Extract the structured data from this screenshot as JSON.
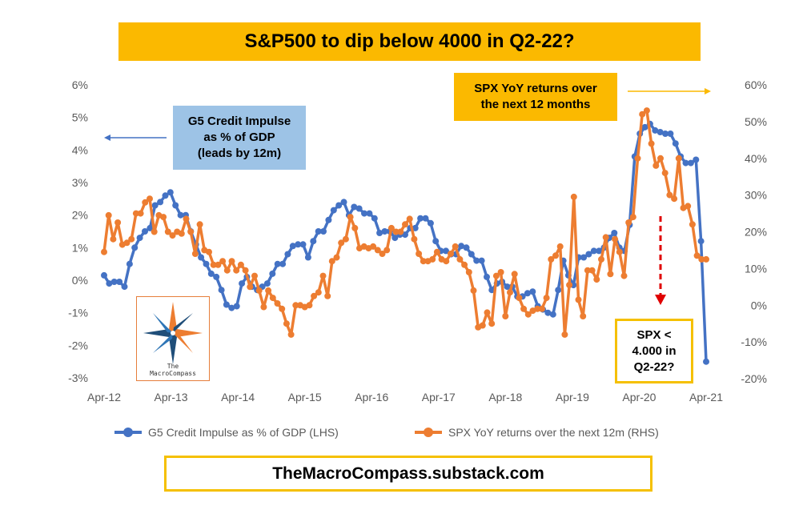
{
  "title": "S&P500 to dip below 4000 in Q2-22?",
  "footer": "TheMacroCompass.substack.com",
  "annotations": {
    "left_lines": [
      "G5 Credit Impulse",
      "as % of GDP",
      "(leads by 12m)"
    ],
    "right_lines": [
      "SPX YoY returns over",
      "the next 12 months"
    ],
    "box_lines": [
      "SPX <",
      "4.000 in",
      "Q2-22?"
    ]
  },
  "logo": {
    "line1": "The",
    "line2": "MacroCompass"
  },
  "colors": {
    "credit": "#4472c4",
    "spx": "#ed7d31",
    "title_bg": "#fbb900",
    "box_left": "#9dc3e6",
    "arrow_red": "#e00000"
  },
  "chart_data": {
    "type": "line",
    "title": "S&P500 to dip below 4000 in Q2-22?",
    "x_ticks": [
      "Apr-12",
      "Apr-13",
      "Apr-14",
      "Apr-15",
      "Apr-16",
      "Apr-17",
      "Apr-18",
      "Apr-19",
      "Apr-20",
      "Apr-21"
    ],
    "y_left": {
      "ticks": [
        "6%",
        "5%",
        "4%",
        "3%",
        "2%",
        "1%",
        "0%",
        "-1%",
        "-2%",
        "-3%"
      ],
      "min": -3,
      "max": 6
    },
    "y_right": {
      "ticks": [
        "60%",
        "50%",
        "40%",
        "30%",
        "20%",
        "10%",
        "0%",
        "-10%",
        "-20%"
      ],
      "min": -20,
      "max": 60
    },
    "series": [
      {
        "name": "G5 Credit Impulse as % of GDP (LHS)",
        "axis": "left",
        "color": "#4472c4",
        "start_month_index": 0,
        "values": [
          0.15,
          -0.1,
          -0.05,
          -0.05,
          -0.2,
          0.5,
          1.0,
          1.3,
          1.5,
          1.6,
          2.3,
          2.4,
          2.6,
          2.7,
          2.3,
          2.0,
          2.0,
          1.5,
          1.1,
          0.7,
          0.5,
          0.2,
          0.1,
          -0.3,
          -0.75,
          -0.85,
          -0.8,
          -0.1,
          0.1,
          -0.2,
          -0.3,
          -0.2,
          -0.1,
          0.2,
          0.5,
          0.5,
          0.8,
          1.05,
          1.1,
          1.1,
          0.7,
          1.2,
          1.5,
          1.5,
          1.85,
          2.15,
          2.3,
          2.4,
          2.0,
          2.25,
          2.2,
          2.05,
          2.05,
          1.9,
          1.45,
          1.5,
          1.5,
          1.3,
          1.4,
          1.4,
          1.6,
          1.6,
          1.9,
          1.9,
          1.75,
          1.2,
          0.9,
          0.9,
          0.8,
          0.8,
          1.05,
          1.0,
          0.8,
          0.6,
          0.6,
          0.1,
          -0.3,
          -0.1,
          -0.05,
          -0.2,
          -0.2,
          -0.5,
          -0.5,
          -0.4,
          -0.35,
          -0.8,
          -0.9,
          -1.0,
          -1.05,
          -0.3,
          0.6,
          0.15,
          -0.15,
          0.7,
          0.7,
          0.8,
          0.9,
          0.9,
          1.0,
          1.3,
          1.45,
          1.0,
          0.9,
          1.7,
          3.8,
          4.5,
          4.7,
          4.8,
          4.6,
          4.55,
          4.5,
          4.5,
          4.2,
          3.8,
          3.6,
          3.6,
          3.7,
          1.2,
          -2.5
        ]
      },
      {
        "name": "SPX YoY returns over the next 12m (RHS)",
        "axis": "right",
        "color": "#ed7d31",
        "start_month_index": 0,
        "values": [
          14.5,
          24.5,
          18,
          22.5,
          16.5,
          17,
          18,
          25,
          25,
          28,
          29,
          20,
          24.5,
          24,
          20,
          19,
          20,
          19.5,
          23.5,
          20,
          14,
          22,
          15,
          14.5,
          11,
          11,
          12,
          9.5,
          12,
          9.5,
          11,
          9.5,
          5,
          8,
          4,
          -0.5,
          4,
          2,
          0.5,
          -1,
          -5,
          -8,
          0,
          0,
          -0.5,
          0,
          2.5,
          3.5,
          8,
          2.5,
          12,
          13,
          17,
          18,
          24,
          21,
          15.5,
          16,
          15.5,
          16,
          15,
          14,
          15,
          21,
          20,
          20,
          22,
          23.5,
          18,
          14,
          12,
          12,
          12.5,
          14.5,
          12.5,
          12,
          14,
          16,
          12.5,
          11,
          9,
          4,
          -6,
          -5.5,
          -2,
          -5,
          8,
          9,
          -3,
          3.5,
          8.5,
          2,
          -1,
          -2.5,
          -1.5,
          -1,
          -1,
          2,
          12.5,
          13.5,
          16,
          -8,
          5.5,
          29.5,
          1.5,
          -3,
          9.5,
          9.5,
          7,
          12.5,
          18.5,
          8.5,
          18,
          14.5,
          8,
          22.5,
          24,
          40,
          52,
          53,
          44,
          38,
          40,
          36,
          30,
          29,
          40,
          26.5,
          27,
          22,
          13.5,
          12.5,
          12.5
        ]
      }
    ],
    "legend": [
      "G5 Credit Impulse as % of GDP (LHS)",
      "SPX YoY returns over the next 12m (RHS)"
    ]
  }
}
